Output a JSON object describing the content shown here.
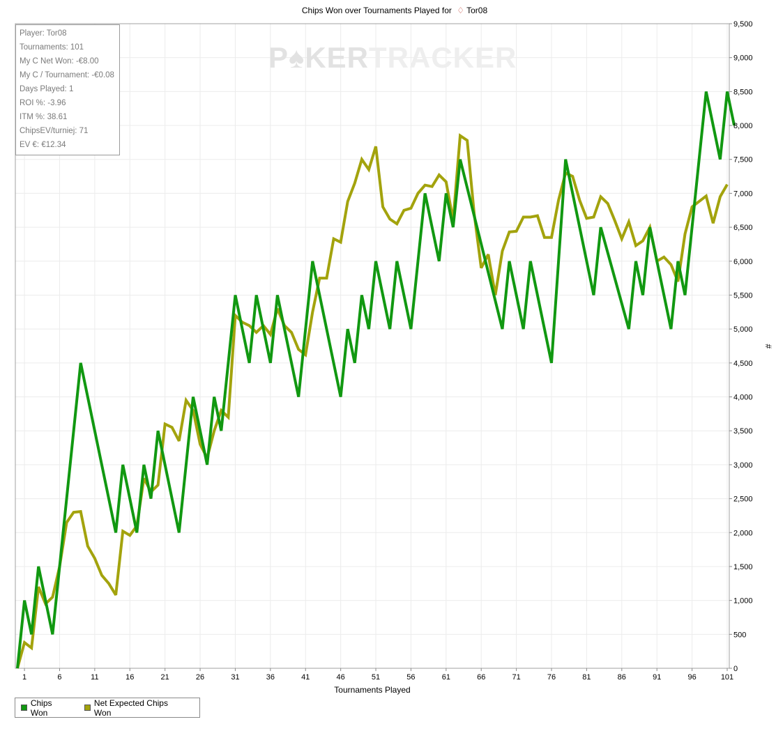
{
  "chart_data": {
    "type": "line",
    "title_prefix": "Chips Won over Tournaments Played for",
    "player": "Tor08",
    "xlabel": "Tournaments Played",
    "ylabel": "#",
    "xlim": [
      0,
      101
    ],
    "ylim": [
      0,
      9500
    ],
    "xticks": [
      1,
      6,
      11,
      16,
      21,
      26,
      31,
      36,
      41,
      46,
      51,
      56,
      61,
      66,
      71,
      76,
      81,
      86,
      91,
      96,
      101
    ],
    "yticks": [
      0,
      500,
      1000,
      1500,
      2000,
      2500,
      3000,
      3500,
      4000,
      4500,
      5000,
      5500,
      6000,
      6500,
      7000,
      7500,
      8000,
      8500,
      9000,
      9500
    ],
    "grid": true,
    "legend_position": "bottom-left",
    "watermark": {
      "part1": "P",
      "part2": "KER",
      "part3": "TRACKER"
    },
    "series": [
      {
        "name": "Chips Won",
        "color": "#119811",
        "points": [
          [
            0,
            0
          ],
          [
            1,
            1000
          ],
          [
            2,
            500
          ],
          [
            3,
            1500
          ],
          [
            4,
            1000
          ],
          [
            5,
            500
          ],
          [
            6,
            1500
          ],
          [
            9,
            4500
          ],
          [
            14,
            2000
          ],
          [
            15,
            3000
          ],
          [
            17,
            2000
          ],
          [
            18,
            3000
          ],
          [
            19,
            2500
          ],
          [
            20,
            3500
          ],
          [
            23,
            2000
          ],
          [
            25,
            4000
          ],
          [
            27,
            3000
          ],
          [
            28,
            4000
          ],
          [
            29,
            3500
          ],
          [
            31,
            5500
          ],
          [
            33,
            4500
          ],
          [
            34,
            5500
          ],
          [
            36,
            4500
          ],
          [
            37,
            5500
          ],
          [
            40,
            4000
          ],
          [
            42,
            6000
          ],
          [
            46,
            4000
          ],
          [
            47,
            5000
          ],
          [
            48,
            4500
          ],
          [
            49,
            5500
          ],
          [
            50,
            5000
          ],
          [
            51,
            6000
          ],
          [
            53,
            5000
          ],
          [
            54,
            6000
          ],
          [
            56,
            5000
          ],
          [
            58,
            7000
          ],
          [
            60,
            6000
          ],
          [
            61,
            7000
          ],
          [
            62,
            6500
          ],
          [
            63,
            7500
          ],
          [
            69,
            5000
          ],
          [
            70,
            6000
          ],
          [
            72,
            5000
          ],
          [
            73,
            6000
          ],
          [
            76,
            4500
          ],
          [
            78,
            7500
          ],
          [
            82,
            5500
          ],
          [
            83,
            6500
          ],
          [
            87,
            5000
          ],
          [
            88,
            6000
          ],
          [
            89,
            5500
          ],
          [
            90,
            6500
          ],
          [
            93,
            5000
          ],
          [
            94,
            6000
          ],
          [
            95,
            5500
          ],
          [
            98,
            8500
          ],
          [
            100,
            7500
          ],
          [
            101,
            8500
          ],
          [
            102,
            8000
          ]
        ]
      },
      {
        "name": "Net Expected Chips Won",
        "color": "#a3a30d",
        "points": [
          [
            0,
            0
          ],
          [
            1,
            380
          ],
          [
            2,
            300
          ],
          [
            3,
            1200
          ],
          [
            4,
            950
          ],
          [
            5,
            1050
          ],
          [
            6,
            1500
          ],
          [
            7,
            2150
          ],
          [
            8,
            2300
          ],
          [
            9,
            2310
          ],
          [
            10,
            1800
          ],
          [
            11,
            1620
          ],
          [
            12,
            1370
          ],
          [
            13,
            1250
          ],
          [
            14,
            1080
          ],
          [
            15,
            2020
          ],
          [
            16,
            1960
          ],
          [
            17,
            2100
          ],
          [
            18,
            2800
          ],
          [
            19,
            2600
          ],
          [
            20,
            2700
          ],
          [
            21,
            3600
          ],
          [
            22,
            3550
          ],
          [
            23,
            3350
          ],
          [
            24,
            3950
          ],
          [
            25,
            3800
          ],
          [
            26,
            3300
          ],
          [
            27,
            3100
          ],
          [
            28,
            3500
          ],
          [
            29,
            3800
          ],
          [
            30,
            3700
          ],
          [
            31,
            5200
          ],
          [
            32,
            5100
          ],
          [
            33,
            5050
          ],
          [
            34,
            4950
          ],
          [
            35,
            5050
          ],
          [
            36,
            4920
          ],
          [
            37,
            5300
          ],
          [
            38,
            5050
          ],
          [
            39,
            4950
          ],
          [
            40,
            4700
          ],
          [
            41,
            4620
          ],
          [
            42,
            5250
          ],
          [
            43,
            5750
          ],
          [
            44,
            5750
          ],
          [
            45,
            6330
          ],
          [
            46,
            6280
          ],
          [
            47,
            6880
          ],
          [
            48,
            7150
          ],
          [
            49,
            7500
          ],
          [
            50,
            7350
          ],
          [
            51,
            7690
          ],
          [
            52,
            6800
          ],
          [
            53,
            6620
          ],
          [
            54,
            6550
          ],
          [
            55,
            6750
          ],
          [
            56,
            6780
          ],
          [
            57,
            7000
          ],
          [
            58,
            7120
          ],
          [
            59,
            7100
          ],
          [
            60,
            7270
          ],
          [
            61,
            7170
          ],
          [
            62,
            6600
          ],
          [
            63,
            7850
          ],
          [
            64,
            7780
          ],
          [
            65,
            6700
          ],
          [
            66,
            5900
          ],
          [
            67,
            6100
          ],
          [
            68,
            5500
          ],
          [
            69,
            6150
          ],
          [
            70,
            6430
          ],
          [
            71,
            6440
          ],
          [
            72,
            6650
          ],
          [
            73,
            6650
          ],
          [
            74,
            6670
          ],
          [
            75,
            6350
          ],
          [
            76,
            6350
          ],
          [
            77,
            6900
          ],
          [
            78,
            7300
          ],
          [
            79,
            7250
          ],
          [
            80,
            6900
          ],
          [
            81,
            6630
          ],
          [
            82,
            6650
          ],
          [
            83,
            6950
          ],
          [
            84,
            6850
          ],
          [
            85,
            6600
          ],
          [
            86,
            6330
          ],
          [
            87,
            6580
          ],
          [
            88,
            6230
          ],
          [
            89,
            6300
          ],
          [
            90,
            6500
          ],
          [
            91,
            6000
          ],
          [
            92,
            6060
          ],
          [
            93,
            5950
          ],
          [
            94,
            5700
          ],
          [
            95,
            6400
          ],
          [
            96,
            6800
          ],
          [
            97,
            6880
          ],
          [
            98,
            6960
          ],
          [
            99,
            6560
          ],
          [
            100,
            6950
          ],
          [
            101,
            7130
          ]
        ]
      }
    ]
  },
  "stats": [
    "Player: Tor08",
    "Tournaments: 101",
    "My C Net Won: -€8.00",
    "My C / Tournament: -€0.08",
    "Days Played: 1",
    "ROI %: -3.96",
    "ITM %: 38.61",
    "ChipsEV/turniej: 71",
    "EV €: €12.34"
  ]
}
